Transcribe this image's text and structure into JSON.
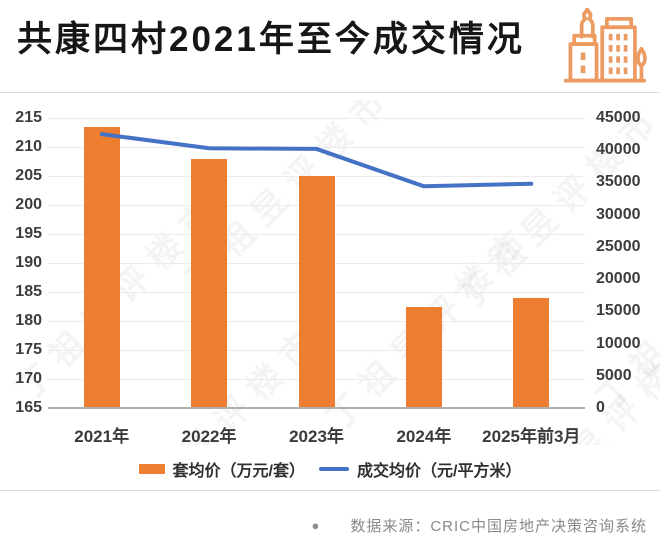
{
  "header": {
    "title": "共康四村2021年至今成交情况",
    "icon": "city-buildings-icon"
  },
  "watermark": {
    "text": "丁祖昱评楼市"
  },
  "colors": {
    "bar": "#ED7D31",
    "line": "#4472C4",
    "icon_stroke": "#EC9B62",
    "title_text": "#161616",
    "axis_text": "#3D3D3D",
    "grid": "#ECECEC",
    "baseline": "#AFAFAF",
    "divider": "#DBDBDB",
    "footer_text": "#8A8A8A"
  },
  "chart_data": {
    "type": "bar+line combo",
    "title": "共康四村2021年至今成交情况",
    "categories": [
      "2021年",
      "2022年",
      "2023年",
      "2024年",
      "2025年前3月"
    ],
    "series": [
      {
        "name": "套均价（万元/套）",
        "type": "bar",
        "axis": "left",
        "color": "#ED7D31",
        "values": [
          213.5,
          208,
          205,
          182.5,
          184
        ]
      },
      {
        "name": "成交均价（元/平方米）",
        "type": "line",
        "axis": "right",
        "color": "#4472C4",
        "values": [
          42500,
          40300,
          40200,
          34400,
          34800
        ]
      }
    ],
    "left_axis": {
      "min": 165,
      "max": 215,
      "step": 5,
      "tick_labels": [
        "215",
        "210",
        "205",
        "200",
        "195",
        "190",
        "185",
        "180",
        "175",
        "170",
        "165"
      ]
    },
    "right_axis": {
      "min": 0,
      "max": 45000,
      "step": 5000,
      "tick_labels": [
        "45000",
        "40000",
        "35000",
        "30000",
        "25000",
        "20000",
        "15000",
        "10000",
        "5000",
        "0"
      ]
    },
    "grid": true,
    "legend_position": "bottom"
  },
  "footer": {
    "bullet": "●",
    "source_text": "数据来源：CRIC中国房地产决策咨询系统"
  }
}
